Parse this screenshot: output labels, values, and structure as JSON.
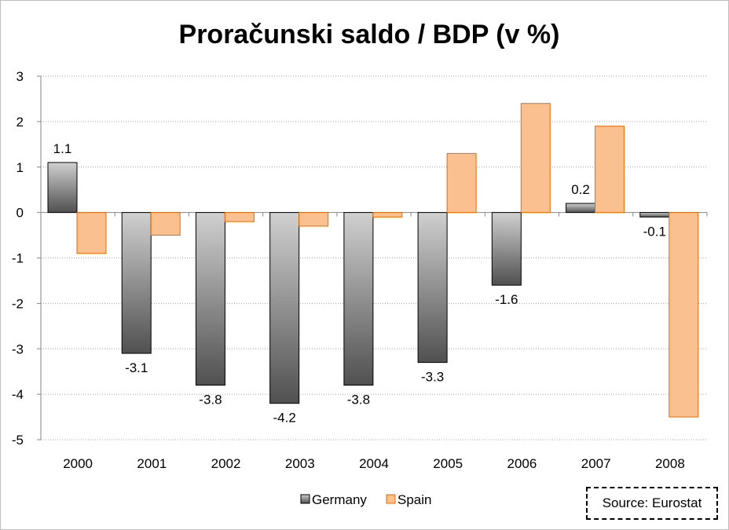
{
  "chart_data": {
    "type": "bar",
    "title": "Proračunski saldo / BDP (v %)",
    "xlabel": "",
    "ylabel": "",
    "ylim": [
      -5,
      3
    ],
    "yticks": [
      "3",
      "2",
      "1",
      "0",
      "-1",
      "-2",
      "-3",
      "-4",
      "-5"
    ],
    "grid": true,
    "categories": [
      "2000",
      "2001",
      "2002",
      "2003",
      "2004",
      "2005",
      "2006",
      "2007",
      "2008"
    ],
    "series": [
      {
        "name": "Germany",
        "values": [
          1.1,
          -3.1,
          -3.8,
          -4.2,
          -3.8,
          -3.3,
          -1.6,
          0.2,
          -0.1
        ],
        "labels": [
          "1.1",
          "-3.1",
          "-3.8",
          "-4.2",
          "-3.8",
          "-3.3",
          "-1.6",
          "0.2",
          "-0.1"
        ],
        "color": "#8c8c8c"
      },
      {
        "name": "Spain",
        "values": [
          -0.9,
          -0.5,
          -0.2,
          -0.3,
          -0.1,
          1.3,
          2.4,
          1.9,
          -4.5
        ],
        "color": "#fac090"
      }
    ],
    "legend_position": "bottom"
  },
  "source_note": "Source: Eurostat"
}
